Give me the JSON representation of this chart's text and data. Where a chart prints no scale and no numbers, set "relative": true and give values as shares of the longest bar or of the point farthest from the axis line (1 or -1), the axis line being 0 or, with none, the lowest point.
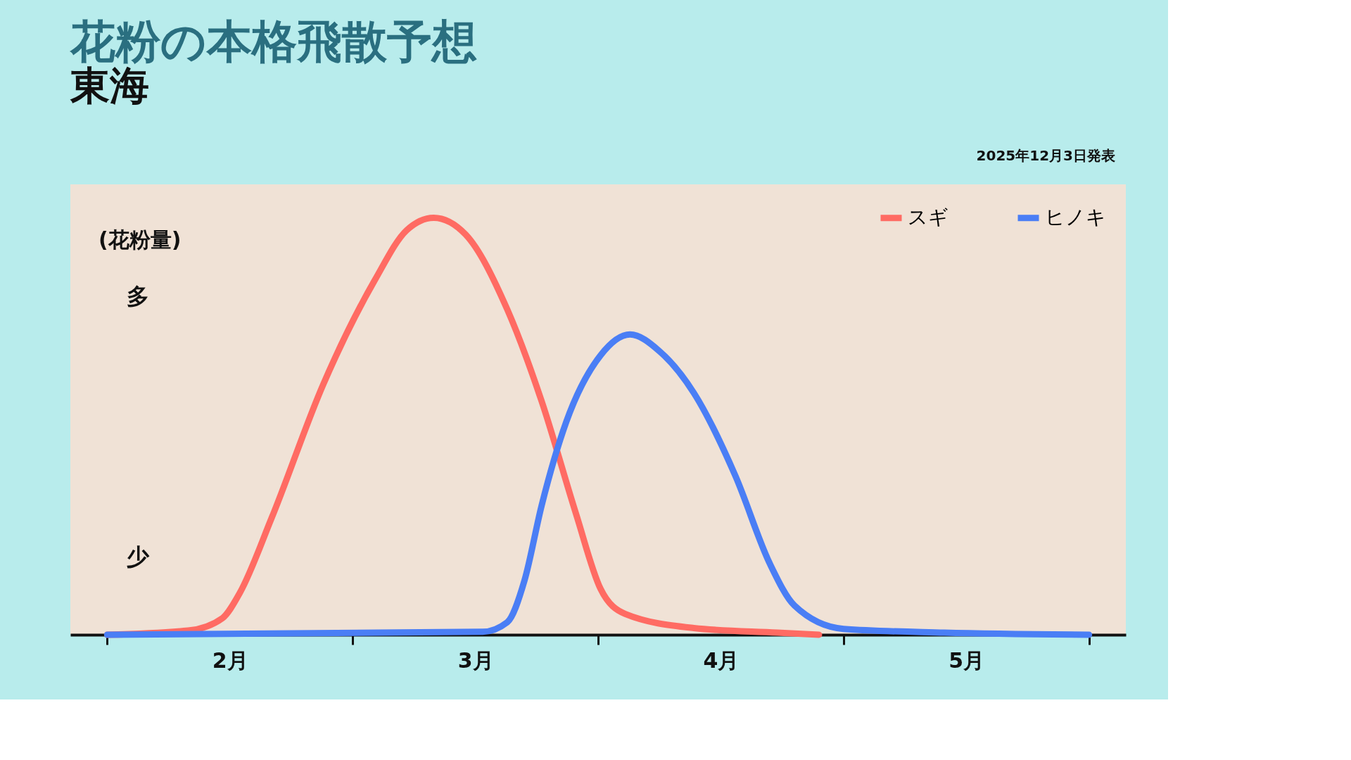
{
  "chart_data": {
    "type": "line",
    "title": "花粉の本格飛散予想",
    "subtitle": "東海",
    "ylabel": "(花粉量)",
    "relative": true,
    "grid": false,
    "legend": "top right",
    "marker": "none",
    "line_style": "solid",
    "annotations": [
      "多",
      "少",
      "2025年12月3日発表"
    ],
    "xlim": [
      1.85,
      6.15
    ],
    "xticks": [
      {
        "value": 2,
        "label": null
      },
      {
        "value": 2.5,
        "label": "2月"
      },
      {
        "value": 3,
        "label": null
      },
      {
        "value": 3.5,
        "label": "3月"
      },
      {
        "value": 4,
        "label": null
      },
      {
        "value": 4.5,
        "label": "4月"
      },
      {
        "value": 5,
        "label": null
      },
      {
        "value": 5.5,
        "label": "5月"
      },
      {
        "value": 6,
        "label": null
      }
    ],
    "series": [
      {
        "name": "スギ",
        "color": "#ff6b63",
        "x": [
          2.0,
          2.33,
          2.47,
          2.54,
          2.67,
          2.88,
          3.09,
          3.22,
          3.33,
          3.46,
          3.63,
          3.77,
          3.91,
          4.01,
          4.11,
          4.39,
          4.73,
          4.9
        ],
        "values": [
          0.0,
          0.01,
          0.04,
          0.1,
          0.28,
          0.6,
          0.85,
          0.97,
          1.0,
          0.96,
          0.78,
          0.56,
          0.29,
          0.11,
          0.05,
          0.016,
          0.005,
          0.0
        ]
      },
      {
        "name": "ヒノキ",
        "color": "#4a7ef5",
        "x": [
          2.0,
          3.53,
          3.63,
          3.7,
          3.77,
          3.87,
          4.01,
          4.13,
          4.25,
          4.39,
          4.56,
          4.7,
          4.8,
          5.0,
          5.41,
          6.0
        ],
        "values": [
          0.0,
          0.007,
          0.03,
          0.13,
          0.31,
          0.51,
          0.67,
          0.72,
          0.68,
          0.58,
          0.38,
          0.17,
          0.07,
          0.014,
          0.005,
          0.0
        ]
      }
    ]
  }
}
